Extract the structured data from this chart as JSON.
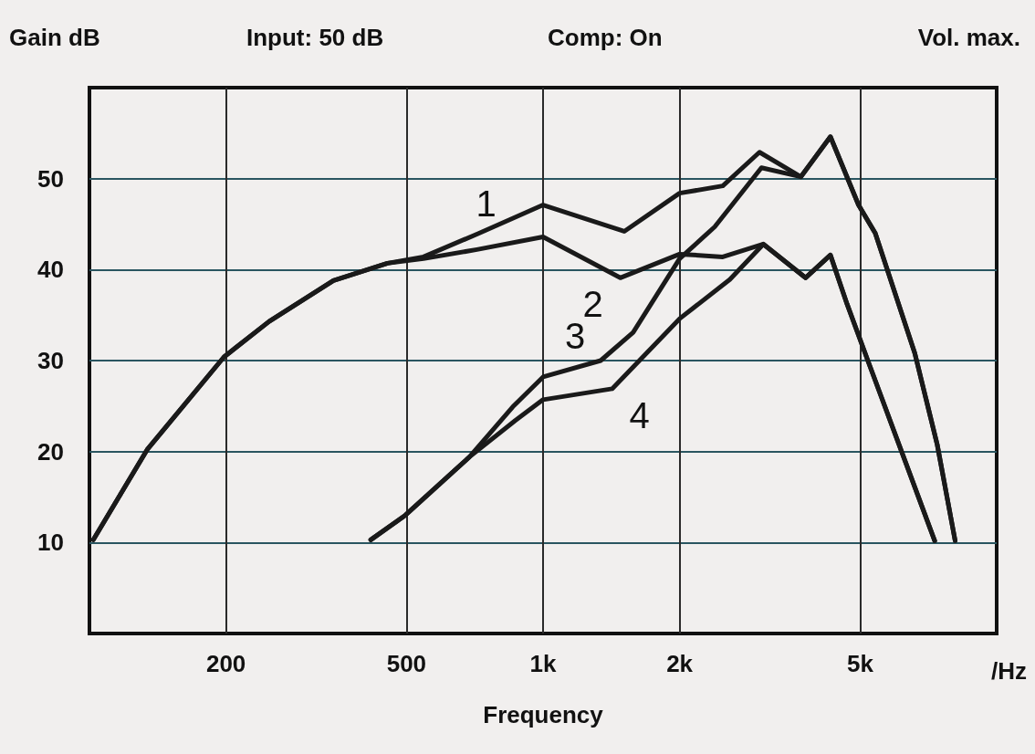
{
  "chart_data": {
    "type": "line",
    "ylabel": "Gain dB",
    "xlabel": "Frequency",
    "annotations": [
      "Input: 50 dB",
      "Comp: On",
      "Vol. max.",
      "/Hz"
    ],
    "log": "x",
    "xlim": [
      100,
      10000
    ],
    "xticks": [
      {
        "value": 200,
        "label": "200"
      },
      {
        "value": 500,
        "label": "500"
      },
      {
        "value": 1000,
        "label": "1k"
      },
      {
        "value": 2000,
        "label": "2k"
      },
      {
        "value": 5000,
        "label": "5k"
      }
    ],
    "ylim": [
      0,
      60
    ],
    "yticks": [
      10,
      20,
      30,
      40,
      50
    ],
    "grid": true,
    "legend": false,
    "marker": "none",
    "line_style": "solid",
    "series": [
      {
        "name": "1",
        "color": "#1a1a1a",
        "x": [
          102,
          134,
          198,
          249,
          345,
          454,
          545,
          715,
          1000,
          1510,
          2000,
          2490,
          3000,
          3700,
          4300,
          4960,
          5400,
          6600,
          7400,
          8100
        ],
        "values": [
          10.3,
          20.2,
          30.4,
          34.3,
          38.8,
          40.7,
          41.4,
          43.9,
          47.1,
          44.2,
          48.4,
          49.2,
          52.9,
          50.2,
          54.6,
          47.1,
          44,
          30.8,
          20.7,
          10.2
        ]
      },
      {
        "name": "2",
        "color": "#1a1a1a",
        "x": [
          102,
          134,
          198,
          249,
          345,
          454,
          545,
          715,
          1000,
          1480,
          2000,
          2490,
          3060,
          3790,
          4300,
          4680,
          5200,
          7300
        ],
        "values": [
          10.3,
          20.2,
          30.4,
          34.3,
          38.8,
          40.7,
          41.2,
          42.2,
          43.6,
          39.1,
          41.7,
          41.4,
          42.8,
          39.1,
          41.6,
          36.2,
          30,
          10.2
        ]
      },
      {
        "name": "3",
        "color": "#1a1a1a",
        "x": [
          417,
          497,
          688,
          857,
          1000,
          1340,
          1580,
          2000,
          2390,
          3030,
          3700,
          4300,
          4960,
          5400,
          6600,
          7400,
          8100
        ],
        "values": [
          10.3,
          13,
          19.4,
          24.9,
          28.2,
          30,
          33.1,
          41.2,
          44.7,
          51.2,
          50.2,
          54.6,
          47.1,
          44,
          30.8,
          20.7,
          10.2
        ]
      },
      {
        "name": "4",
        "color": "#1a1a1a",
        "x": [
          417,
          497,
          688,
          868,
          1000,
          1420,
          2000,
          2580,
          3060,
          3790,
          4300,
          4680,
          5200,
          7300
        ],
        "values": [
          10.3,
          13,
          19.4,
          23.4,
          25.7,
          26.9,
          34.6,
          38.9,
          42.8,
          39.1,
          41.6,
          36.2,
          30,
          10.2
        ]
      }
    ]
  }
}
